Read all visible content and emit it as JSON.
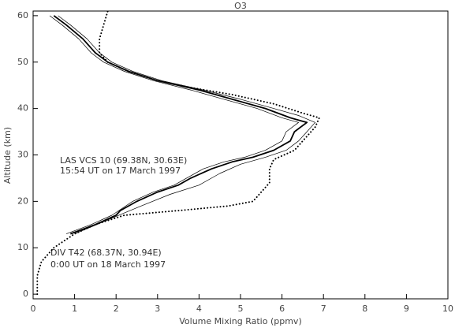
{
  "chart_data": {
    "type": "line",
    "title": "O3",
    "x_label": "Volume Mixing Ratio (ppmv)",
    "y_label": "Altitude (km)",
    "xlim": [
      0,
      10
    ],
    "ylim": [
      -1,
      61
    ],
    "xticks": [
      0,
      1,
      2,
      3,
      4,
      5,
      6,
      7,
      8,
      9,
      10
    ],
    "yticks": [
      0,
      10,
      20,
      30,
      40,
      50,
      60
    ],
    "annotations": [
      "LAS VCS 10 (69.38N, 30.63E)",
      "15:54 UT on 17 March 1997",
      "DIV T42 (68.37N, 30.94E)",
      "0:00 UT on 18 March 1997"
    ],
    "series": [
      {
        "color": "#000000",
        "width": 1.8,
        "style": "solid",
        "x": [
          0.9,
          1.5,
          2.0,
          2.1,
          2.5,
          3.0,
          3.5,
          3.8,
          4.3,
          4.8,
          5.3,
          5.8,
          6.2,
          6.3,
          6.6,
          6.2,
          5.6,
          4.8,
          4.0,
          3.0,
          2.3,
          1.8,
          1.5,
          1.2,
          0.8,
          0.5
        ],
        "values": [
          13,
          15,
          17,
          18,
          20,
          22,
          23.5,
          25,
          27,
          28.5,
          29.5,
          31,
          33,
          35,
          37,
          38,
          40,
          42,
          44,
          46,
          48,
          50,
          52,
          55,
          58,
          60
        ]
      },
      {
        "color": "#000000",
        "width": 0.7,
        "style": "solid",
        "x": [
          1.0,
          2.2,
          2.6,
          3.3,
          4.0,
          4.5,
          5.0,
          5.6,
          6.1,
          6.4,
          6.6,
          6.8,
          6.4,
          5.8,
          5.0,
          4.1,
          3.1,
          2.4,
          1.9,
          1.6,
          1.3,
          0.9,
          0.6
        ],
        "values": [
          13,
          17.5,
          19,
          21.5,
          23.5,
          26,
          28,
          29.5,
          31,
          33,
          35,
          37,
          38.5,
          40,
          42,
          44,
          46,
          48,
          50,
          52,
          55,
          58,
          60
        ]
      },
      {
        "color": "#000000",
        "width": 0.7,
        "style": "solid",
        "x": [
          0.8,
          1.4,
          1.9,
          2.4,
          2.9,
          3.4,
          3.7,
          4.1,
          4.6,
          5.1,
          5.6,
          6.0,
          6.1,
          6.4,
          6.0,
          5.4,
          4.6,
          3.8,
          2.9,
          2.2,
          1.7,
          1.4,
          1.1,
          0.7,
          0.4
        ],
        "values": [
          13,
          15,
          17,
          20,
          22,
          23.5,
          25,
          27,
          28.5,
          29.5,
          31,
          33,
          35,
          37,
          38,
          40,
          42,
          44,
          46,
          48,
          50,
          52,
          55,
          58,
          60
        ]
      },
      {
        "color": "#000000",
        "width": 2,
        "style": "dotted",
        "x": [
          0.1,
          0.1,
          0.2,
          0.5,
          1.0,
          1.5,
          2.2,
          3.5,
          4.7,
          5.3,
          5.5,
          5.7,
          5.7,
          5.8,
          6.3,
          6.5,
          6.8,
          6.9,
          6.5,
          5.8,
          4.8,
          3.8,
          3.0,
          2.3,
          1.8,
          1.6,
          1.6,
          1.7,
          1.8
        ],
        "values": [
          0,
          4,
          7,
          10,
          13,
          15,
          17,
          18,
          19,
          20,
          22,
          24,
          27,
          29,
          31,
          33,
          36,
          38,
          39,
          41,
          43,
          44.5,
          46,
          48,
          50,
          52,
          55,
          58,
          61
        ]
      }
    ]
  }
}
